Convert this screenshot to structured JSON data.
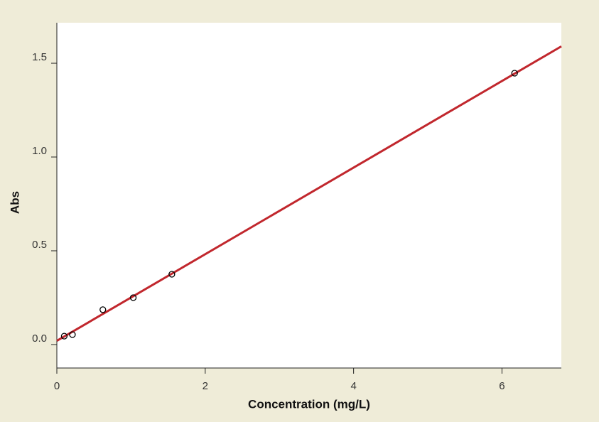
{
  "chart_data": {
    "type": "scatter",
    "x_label": "Concentration (mg/L)",
    "y_label": "Abs",
    "points": {
      "x": [
        0.1,
        0.21,
        0.62,
        1.03,
        1.55,
        6.17
      ],
      "values": [
        0.045,
        0.053,
        0.186,
        0.25,
        0.375,
        1.447
      ],
      "color": "#000000"
    },
    "fit_line": {
      "x": [
        0,
        6.8
      ],
      "values": [
        0.02,
        1.59
      ],
      "color": "#c1272d"
    },
    "xlim": [
      0,
      6.8
    ],
    "xticks": [
      0,
      2,
      4,
      6
    ],
    "ylim": [
      -0.125,
      1.716
    ],
    "yticks": [
      {
        "value": 0,
        "label": "0.0"
      },
      0.5,
      {
        "value": 1,
        "label": "1.0"
      },
      1.5
    ],
    "grid": false
  }
}
